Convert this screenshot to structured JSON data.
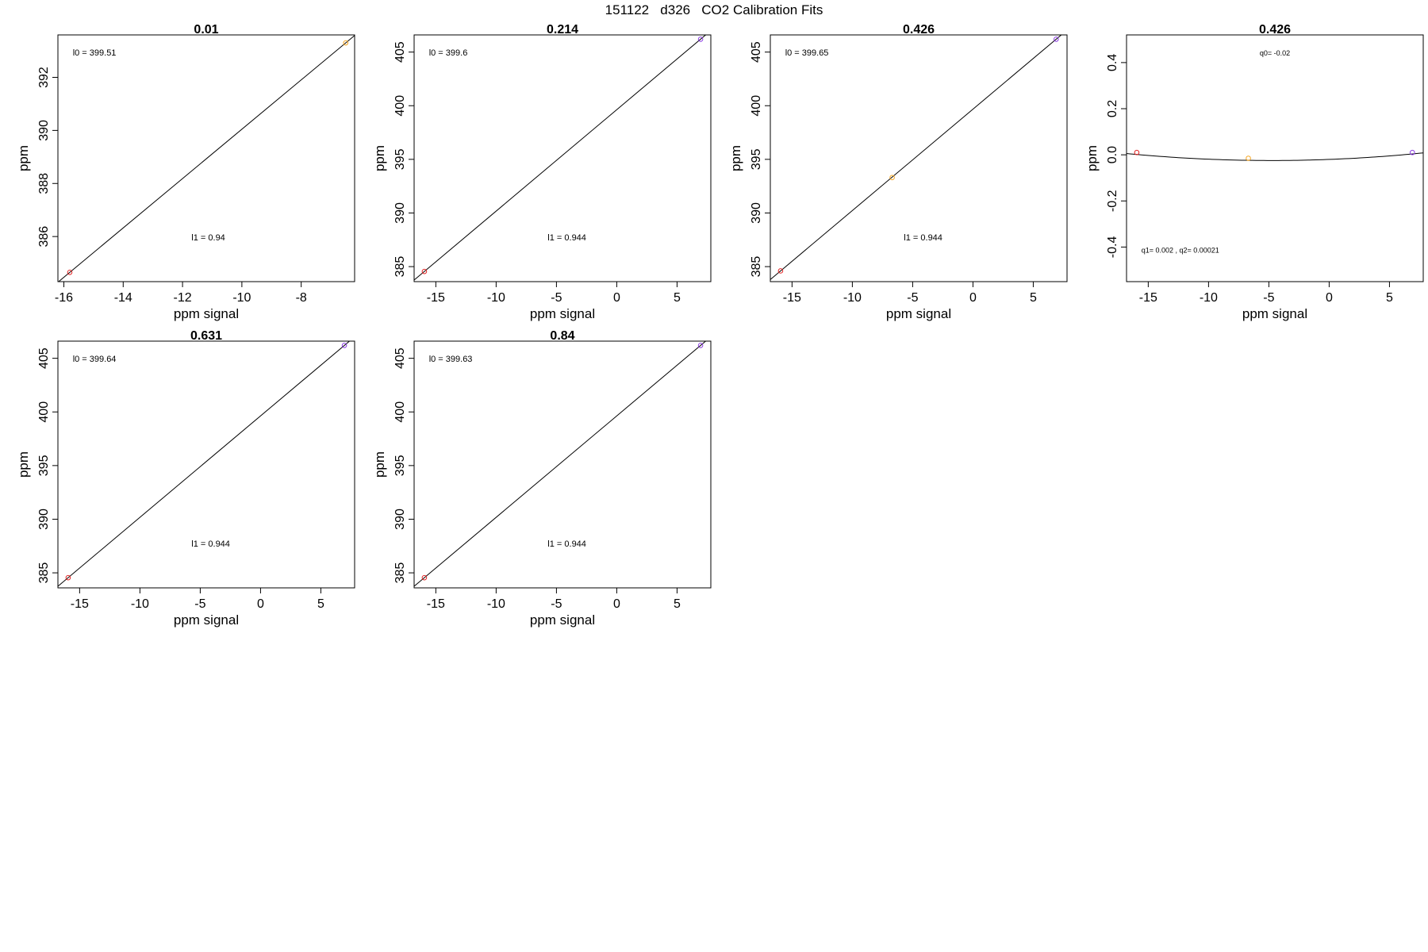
{
  "figure": {
    "title": "151122   d326   CO2 Calibration Fits",
    "colors": {
      "axis": "#000000",
      "line": "#000000",
      "red": "#e32626",
      "orange": "#f5a623",
      "purple": "#8a3ce3"
    }
  },
  "chart_data": [
    {
      "type": "scatter",
      "title": "0.01",
      "xlabel": "ppm signal",
      "ylabel": "ppm",
      "xlim": [
        -16.2,
        -6.2
      ],
      "ylim": [
        384.3,
        393.6
      ],
      "xticks": [
        -16,
        -14,
        -12,
        -10,
        -8
      ],
      "yticks": [
        386,
        388,
        390,
        392
      ],
      "points": [
        {
          "x": -15.8,
          "y": 384.65,
          "color": "red"
        },
        {
          "x": -6.5,
          "y": 393.3,
          "color": "orange"
        }
      ],
      "fit": {
        "kind": "linear",
        "l0": 399.51,
        "l1": 0.94
      },
      "annotations": [
        "l0 =  399.51",
        "l1 =  0.94"
      ]
    },
    {
      "type": "scatter",
      "title": "0.214",
      "xlabel": "ppm signal",
      "ylabel": "ppm",
      "xlim": [
        -16.8,
        7.8
      ],
      "ylim": [
        383.6,
        406.6
      ],
      "xticks": [
        -15,
        -10,
        -5,
        0,
        5
      ],
      "yticks": [
        385,
        390,
        395,
        400,
        405
      ],
      "points": [
        {
          "x": -15.95,
          "y": 384.55,
          "color": "red"
        },
        {
          "x": 6.95,
          "y": 406.2,
          "color": "purple"
        }
      ],
      "fit": {
        "kind": "linear",
        "l0": 399.6,
        "l1": 0.944
      },
      "annotations": [
        "l0 =  399.6",
        "l1 =  0.944"
      ]
    },
    {
      "type": "scatter",
      "title": "0.426",
      "xlabel": "ppm signal",
      "ylabel": "ppm",
      "xlim": [
        -16.8,
        7.8
      ],
      "ylim": [
        383.6,
        406.6
      ],
      "xticks": [
        -15,
        -10,
        -5,
        0,
        5
      ],
      "yticks": [
        385,
        390,
        395,
        400,
        405
      ],
      "points": [
        {
          "x": -15.95,
          "y": 384.6,
          "color": "red"
        },
        {
          "x": -6.7,
          "y": 393.3,
          "color": "orange"
        },
        {
          "x": 6.9,
          "y": 406.2,
          "color": "purple"
        }
      ],
      "fit": {
        "kind": "linear",
        "l0": 399.65,
        "l1": 0.944
      },
      "annotations": [
        "l0 =  399.65",
        "l1 =  0.944"
      ]
    },
    {
      "type": "scatter",
      "title": "0.426",
      "xlabel": "ppm signal",
      "ylabel": "ppm",
      "xlim": [
        -16.8,
        7.8
      ],
      "ylim": [
        -0.55,
        0.52
      ],
      "xticks": [
        -15,
        -10,
        -5,
        0,
        5
      ],
      "yticks": [
        -0.4,
        -0.2,
        0.0,
        0.2,
        0.4
      ],
      "ytick_labels": [
        "-0.4",
        "-0.2",
        "0.0",
        "0.2",
        "0.4"
      ],
      "points": [
        {
          "x": -15.95,
          "y": 0.01,
          "color": "red"
        },
        {
          "x": -6.7,
          "y": -0.015,
          "color": "orange"
        },
        {
          "x": 6.9,
          "y": 0.01,
          "color": "purple"
        }
      ],
      "fit": {
        "kind": "quadratic",
        "q0": -0.02,
        "q1": 0.002,
        "q2": 0.00021
      },
      "annotations": [
        "q0= -0.02",
        "q1= 0.002 , q2= 0.00021"
      ]
    },
    {
      "type": "scatter",
      "title": "0.631",
      "xlabel": "ppm signal",
      "ylabel": "ppm",
      "xlim": [
        -16.8,
        7.8
      ],
      "ylim": [
        383.6,
        406.6
      ],
      "xticks": [
        -15,
        -10,
        -5,
        0,
        5
      ],
      "yticks": [
        385,
        390,
        395,
        400,
        405
      ],
      "points": [
        {
          "x": -15.95,
          "y": 384.55,
          "color": "red"
        },
        {
          "x": 6.95,
          "y": 406.2,
          "color": "purple"
        }
      ],
      "fit": {
        "kind": "linear",
        "l0": 399.64,
        "l1": 0.944
      },
      "annotations": [
        "l0 =  399.64",
        "l1 =  0.944"
      ]
    },
    {
      "type": "scatter",
      "title": "0.84",
      "xlabel": "ppm signal",
      "ylabel": "ppm",
      "xlim": [
        -16.8,
        7.8
      ],
      "ylim": [
        383.6,
        406.6
      ],
      "xticks": [
        -15,
        -10,
        -5,
        0,
        5
      ],
      "yticks": [
        385,
        390,
        395,
        400,
        405
      ],
      "points": [
        {
          "x": -15.95,
          "y": 384.55,
          "color": "red"
        },
        {
          "x": 6.95,
          "y": 406.2,
          "color": "purple"
        }
      ],
      "fit": {
        "kind": "linear",
        "l0": 399.63,
        "l1": 0.944
      },
      "annotations": [
        "l0 =  399.63",
        "l1 =  0.944"
      ]
    }
  ]
}
